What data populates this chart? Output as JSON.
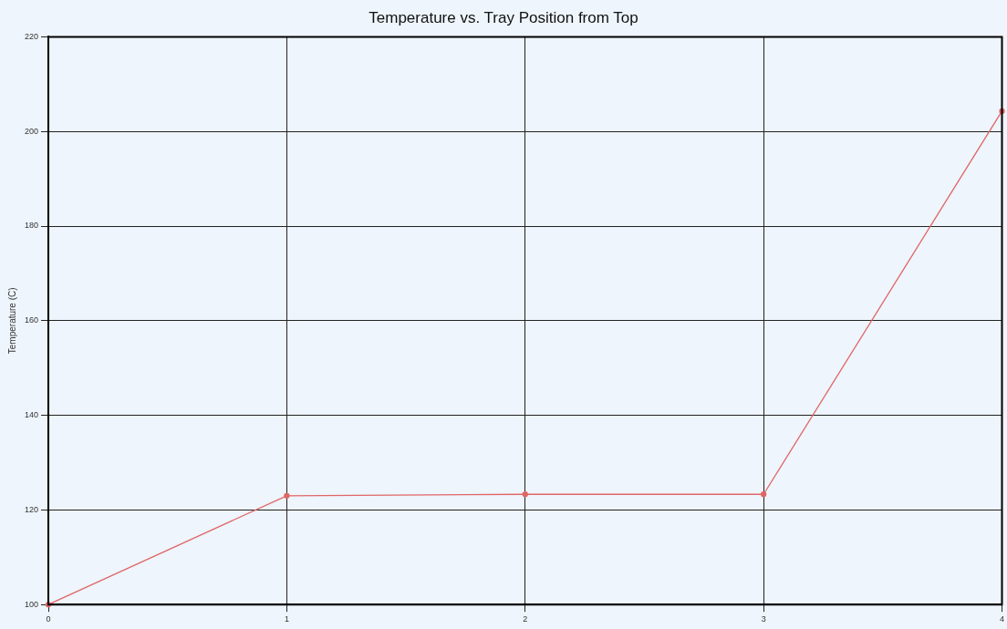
{
  "chart_data": {
    "type": "line",
    "title": "Temperature vs. Tray Position from Top",
    "ylabel": "Temperature (C)",
    "x": [
      0,
      1,
      2,
      3,
      4
    ],
    "series": [
      {
        "color": "#e06666",
        "values": [
          100,
          123,
          123.3,
          123.3,
          204.3
        ]
      }
    ],
    "xlim": [
      0,
      4
    ],
    "xticks": [
      0,
      1,
      2,
      3,
      4
    ],
    "ylim": [
      100,
      220
    ],
    "yticks": [
      100,
      120,
      140,
      160,
      180,
      200,
      220
    ],
    "grid": true,
    "legend": false,
    "marker": "circle",
    "line_style": "solid"
  }
}
